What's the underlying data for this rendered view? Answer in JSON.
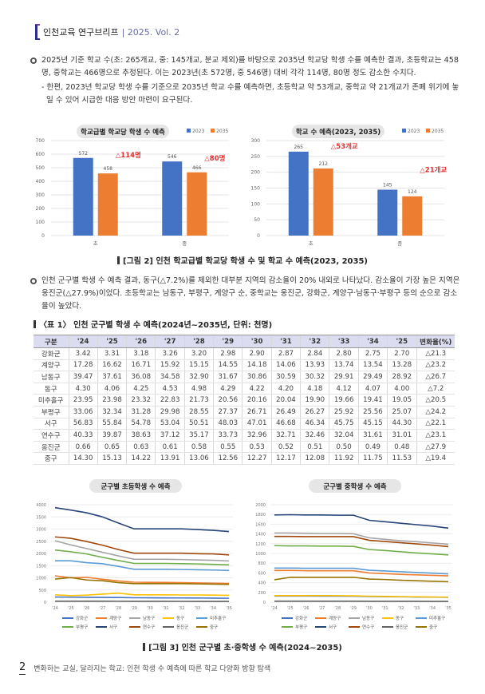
{
  "header": {
    "title": "인천교육 연구브리프",
    "issue": "| 2025. Vol. 2"
  },
  "para1": {
    "bullet": "2025년 기준 학교 수(초: 265개교, 중: 145개교, 분교 제외)를 바탕으로 2035년 학교당 학생 수를 예측한 결과, 초등학교는 458명, 중학교는 466명으로 추정된다. 이는 2023년(초 572명, 중 546명) 대비  각각 114명, 80명 정도 감소한 수치다.",
    "sub": "- 한편, 2023년 학교당 학생 수를 기준으로 2035년 학교 수를 예측하면, 초등학교 약 53개교, 중학교 약 21개교가 존폐 위기에 놓일 수 있어 시급한 대응 방안 마련이 요구된다."
  },
  "figure2_caption": "[그림 2] 인천 학교급별 학교당 학생 수 및 학교 수 예측(2023, 2035)",
  "para2": {
    "bullet": "인천 군구별 학생 수 예측 결과, 동구(△7.2%)를 제외한 대부분 지역의 감소율이 20% 내외로 나타났다. 감소율이 가장 높은 지역은 옹진군(△27.9%)이었다. 초등학교는 남동구, 부평구, 계양구 순, 중학교는 옹진군, 강화군, 계양구·남동구·부평구 등의 순으로 감소율이 높았다."
  },
  "table1": {
    "title": "〈표 1〉 인천 군구별 학생 수 예측(2024년~2035년, 단위: 천명)",
    "headers": [
      "구분",
      "'24",
      "'25",
      "'26",
      "'27",
      "'28",
      "'29",
      "'30",
      "'31",
      "'32",
      "'33",
      "'34",
      "'25",
      "변화율(%)"
    ],
    "rows": [
      [
        "강화군",
        "3.42",
        "3.31",
        "3.18",
        "3.26",
        "3.20",
        "2.98",
        "2.90",
        "2.87",
        "2.84",
        "2.80",
        "2.75",
        "2.70",
        "△21.3"
      ],
      [
        "계양구",
        "17.28",
        "16.62",
        "16.71",
        "15.92",
        "15.15",
        "14.55",
        "14.18",
        "14.06",
        "13.93",
        "13.74",
        "13.54",
        "13.28",
        "△23.2"
      ],
      [
        "남동구",
        "39.47",
        "37.61",
        "36.08",
        "34.58",
        "32.90",
        "31.67",
        "30.86",
        "30.59",
        "30.32",
        "29.91",
        "29.49",
        "28.92",
        "△26.7"
      ],
      [
        "동구",
        "4.30",
        "4.06",
        "4.25",
        "4.53",
        "4.98",
        "4.29",
        "4.22",
        "4.20",
        "4.18",
        "4.12",
        "4.07",
        "4.00",
        "△7.2"
      ],
      [
        "미추홀구",
        "23.95",
        "23.98",
        "23.32",
        "22.83",
        "21.73",
        "20.56",
        "20.16",
        "20.04",
        "19.90",
        "19.66",
        "19.41",
        "19.05",
        "△20.5"
      ],
      [
        "부평구",
        "33.06",
        "32.34",
        "31.28",
        "29.98",
        "28.55",
        "27.37",
        "26.71",
        "26.49",
        "26.27",
        "25.92",
        "25.56",
        "25.07",
        "△24.2"
      ],
      [
        "서구",
        "56.83",
        "55.84",
        "54.78",
        "53.04",
        "50.51",
        "48.03",
        "47.01",
        "46.68",
        "46.34",
        "45.75",
        "45.15",
        "44.30",
        "△22.1"
      ],
      [
        "연수구",
        "40.33",
        "39.87",
        "38.63",
        "37.12",
        "35.17",
        "33.73",
        "32.96",
        "32.71",
        "32.46",
        "32.04",
        "31.61",
        "31.01",
        "△23.1"
      ],
      [
        "옹진군",
        "0.66",
        "0.65",
        "0.63",
        "0.61",
        "0.58",
        "0.55",
        "0.53",
        "0.52",
        "0.51",
        "0.50",
        "0.49",
        "0.48",
        "△27.9"
      ],
      [
        "중구",
        "14.30",
        "15.13",
        "14.22",
        "13.91",
        "13.06",
        "12.56",
        "12.27",
        "12.17",
        "12.08",
        "11.92",
        "11.75",
        "11.53",
        "△19.4"
      ]
    ]
  },
  "figure3_caption": "[그림 3] 인천 군구별 초·중학생 수 예측(2024~2035)",
  "footer": {
    "page": "2",
    "text": "변화하는 교실, 달라지는 학교: 인천 학생 수 예측에 따른 학교 다양화 방향 탐색"
  },
  "chart_data": [
    {
      "type": "bar",
      "title": "학교급별 학교당 학생 수 예측",
      "categories": [
        "초",
        "중"
      ],
      "series": [
        {
          "name": "2023",
          "color": "#4472c4",
          "values": [
            572,
            546
          ]
        },
        {
          "name": "2035",
          "color": "#ed7d31",
          "values": [
            458,
            466
          ]
        }
      ],
      "annotations": [
        "△114명",
        "△80명"
      ],
      "ylim": [
        0,
        700
      ],
      "yticks": [
        0,
        100,
        200,
        300,
        400,
        500,
        600,
        700
      ],
      "legend": "top-right"
    },
    {
      "type": "bar",
      "title": "학교 수 예측(2023, 2035)",
      "categories": [
        "초",
        "중"
      ],
      "series": [
        {
          "name": "2023",
          "color": "#4472c4",
          "values": [
            265,
            145
          ]
        },
        {
          "name": "2035",
          "color": "#ed7d31",
          "values": [
            212,
            124
          ]
        }
      ],
      "annotations": [
        "△53개교",
        "△21개교"
      ],
      "ylim": [
        0,
        300
      ],
      "yticks": [
        0,
        50,
        100,
        150,
        200,
        250,
        300
      ],
      "legend": "top-right"
    },
    {
      "type": "line",
      "title": "군구별 초등학생 수 예측",
      "x": [
        "'24",
        "'25",
        "'26",
        "'27",
        "'28",
        "'29",
        "'30",
        "'31",
        "'32",
        "'33",
        "'34",
        "'35"
      ],
      "ylim": [
        0,
        4000
      ],
      "yticks": [
        0,
        500,
        1000,
        1500,
        2000,
        2500,
        3000,
        3500,
        4000
      ],
      "legend": "bottom",
      "series": [
        {
          "name": "강화군",
          "color": "#4472c4",
          "values": [
            210,
            205,
            200,
            195,
            190,
            180,
            178,
            175,
            172,
            170,
            165,
            160
          ]
        },
        {
          "name": "계양구",
          "color": "#ed7d31",
          "values": [
            1080,
            1000,
            1020,
            940,
            870,
            820,
            815,
            810,
            800,
            790,
            780,
            770
          ]
        },
        {
          "name": "남동구",
          "color": "#a5a5a5",
          "values": [
            2520,
            2350,
            2200,
            2050,
            1900,
            1760,
            1760,
            1760,
            1750,
            1730,
            1720,
            1690
          ]
        },
        {
          "name": "동구",
          "color": "#ffc000",
          "values": [
            300,
            270,
            290,
            330,
            370,
            300,
            300,
            300,
            295,
            295,
            290,
            280
          ]
        },
        {
          "name": "미추홀구",
          "color": "#5b9bd5",
          "values": [
            1700,
            1700,
            1620,
            1580,
            1470,
            1350,
            1350,
            1350,
            1340,
            1330,
            1320,
            1300
          ]
        },
        {
          "name": "부평구",
          "color": "#70ad47",
          "values": [
            2140,
            2070,
            1980,
            1840,
            1710,
            1590,
            1590,
            1590,
            1580,
            1570,
            1550,
            1530
          ]
        },
        {
          "name": "서구",
          "color": "#264478",
          "values": [
            3880,
            3780,
            3670,
            3500,
            3250,
            3010,
            3010,
            3010,
            3010,
            2980,
            2950,
            2900
          ]
        },
        {
          "name": "연수구",
          "color": "#9e480e",
          "values": [
            2680,
            2620,
            2490,
            2340,
            2160,
            2010,
            2010,
            2010,
            2010,
            1990,
            1980,
            1940
          ]
        },
        {
          "name": "옹진군",
          "color": "#636363",
          "values": [
            40,
            40,
            40,
            38,
            37,
            35,
            35,
            34,
            33,
            32,
            31,
            30
          ]
        },
        {
          "name": "중구",
          "color": "#997300",
          "values": [
            950,
            1010,
            910,
            880,
            800,
            760,
            760,
            760,
            760,
            750,
            740,
            730
          ]
        }
      ]
    },
    {
      "type": "line",
      "title": "군구별 중학생 수 예측",
      "x": [
        "'24",
        "'25",
        "'26",
        "'27",
        "'28",
        "'29",
        "'30",
        "'31",
        "'32",
        "'33",
        "'34",
        "'35"
      ],
      "ylim": [
        0,
        2000
      ],
      "yticks": [
        0,
        200,
        400,
        600,
        800,
        1000,
        1200,
        1400,
        1600,
        1800,
        2000
      ],
      "legend": "bottom",
      "series": [
        {
          "name": "강화군",
          "color": "#4472c4",
          "values": [
            125,
            125,
            125,
            124,
            123,
            122,
            115,
            112,
            110,
            106,
            103,
            100
          ]
        },
        {
          "name": "계양구",
          "color": "#ed7d31",
          "values": [
            650,
            650,
            645,
            645,
            645,
            645,
            600,
            585,
            570,
            560,
            550,
            540
          ]
        },
        {
          "name": "남동구",
          "color": "#a5a5a5",
          "values": [
            1420,
            1420,
            1415,
            1410,
            1410,
            1405,
            1320,
            1290,
            1260,
            1240,
            1215,
            1190
          ]
        },
        {
          "name": "동구",
          "color": "#ffc000",
          "values": [
            135,
            135,
            135,
            134,
            133,
            130,
            122,
            118,
            114,
            110,
            106,
            103
          ]
        },
        {
          "name": "미추홀구",
          "color": "#5b9bd5",
          "values": [
            700,
            700,
            695,
            695,
            695,
            695,
            655,
            640,
            625,
            610,
            595,
            580
          ]
        },
        {
          "name": "부평구",
          "color": "#70ad47",
          "values": [
            1160,
            1155,
            1155,
            1150,
            1150,
            1145,
            1080,
            1060,
            1035,
            1010,
            990,
            970
          ]
        },
        {
          "name": "서구",
          "color": "#264478",
          "values": [
            1790,
            1795,
            1790,
            1790,
            1785,
            1785,
            1680,
            1650,
            1620,
            1590,
            1560,
            1520
          ]
        },
        {
          "name": "연수구",
          "color": "#9e480e",
          "values": [
            1350,
            1350,
            1345,
            1345,
            1345,
            1345,
            1270,
            1245,
            1220,
            1195,
            1170,
            1140
          ]
        },
        {
          "name": "옹진군",
          "color": "#636363",
          "values": [
            20,
            20,
            20,
            20,
            19,
            19,
            18,
            18,
            17,
            17,
            16,
            16
          ]
        },
        {
          "name": "중구",
          "color": "#997300",
          "values": [
            460,
            510,
            510,
            510,
            510,
            510,
            475,
            465,
            450,
            440,
            430,
            420
          ]
        }
      ]
    }
  ]
}
